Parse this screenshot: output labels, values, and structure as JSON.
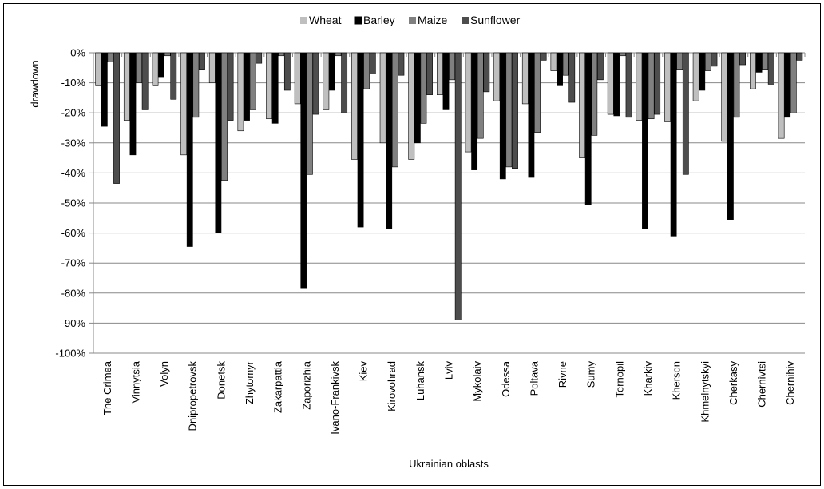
{
  "chart_data": {
    "type": "bar",
    "title": "",
    "xlabel": "Ukrainian oblasts",
    "ylabel": "drawdown",
    "ylim": [
      -100,
      0
    ],
    "yticks": [
      "0%",
      "-10%",
      "-20%",
      "-30%",
      "-40%",
      "-50%",
      "-60%",
      "-70%",
      "-80%",
      "-90%",
      "-100%"
    ],
    "grid": true,
    "legend_position": "top",
    "categories": [
      "The Crimea",
      "Vinnytsia",
      "Volyn",
      "Dnipropetrovsk",
      "Donetsk",
      "Zhytomyr",
      "Zakarpattia",
      "Zaporizhia",
      "Ivano-Frankivsk",
      "Kiev",
      "Kirovohrad",
      "Luhansk",
      "Lviv",
      "Mykolaiv",
      "Odessa",
      "Poltava",
      "Rivne",
      "Sumy",
      "Ternopil",
      "Kharkiv",
      "Kherson",
      "Khmelnytskyi",
      "Cherkasy",
      "Chernivtsi",
      "Chernihiv"
    ],
    "series": [
      {
        "name": "Wheat",
        "color": "#bfbfbf",
        "values": [
          -11,
          -22.5,
          -11,
          -34,
          -10,
          -26,
          -22,
          -17,
          -19,
          -35.5,
          -30,
          -35.5,
          -14,
          -33,
          -16,
          -17,
          -6,
          -35,
          -20.5,
          -22.5,
          -23,
          -16,
          -29.5,
          -12,
          -28.5
        ]
      },
      {
        "name": "Barley",
        "color": "#000000",
        "values": [
          -24.5,
          -34,
          -8,
          -64.5,
          -60,
          -22.5,
          -23.5,
          -78.5,
          -12.5,
          -58,
          -58.5,
          -30,
          -19,
          -39,
          -42,
          -41.5,
          -11,
          -50.5,
          -21,
          -58.5,
          -61,
          -12.5,
          -55.5,
          -6.5,
          -21.5
        ]
      },
      {
        "name": "Maize",
        "color": "#808080",
        "values": [
          -3,
          -10,
          -1,
          -21.5,
          -42.5,
          -19,
          -1,
          -40.5,
          -1,
          -12,
          -38,
          -23.5,
          -9,
          -28.5,
          -38,
          -26.5,
          -7.5,
          -27.5,
          -1,
          -22,
          -5.5,
          -6,
          -21.5,
          -5.5,
          -20
        ]
      },
      {
        "name": "Sunflower",
        "color": "#4d4d4d",
        "values": [
          -43.5,
          -19,
          -15.5,
          -5.5,
          -22.5,
          -3.5,
          -12.5,
          -20.5,
          -20,
          -7,
          -7.5,
          -14,
          -89,
          -13,
          -38.5,
          -2.5,
          -16.5,
          -9,
          -21.5,
          -20.5,
          -40.5,
          -4.5,
          -4,
          -10.5,
          -2.5
        ]
      }
    ]
  }
}
